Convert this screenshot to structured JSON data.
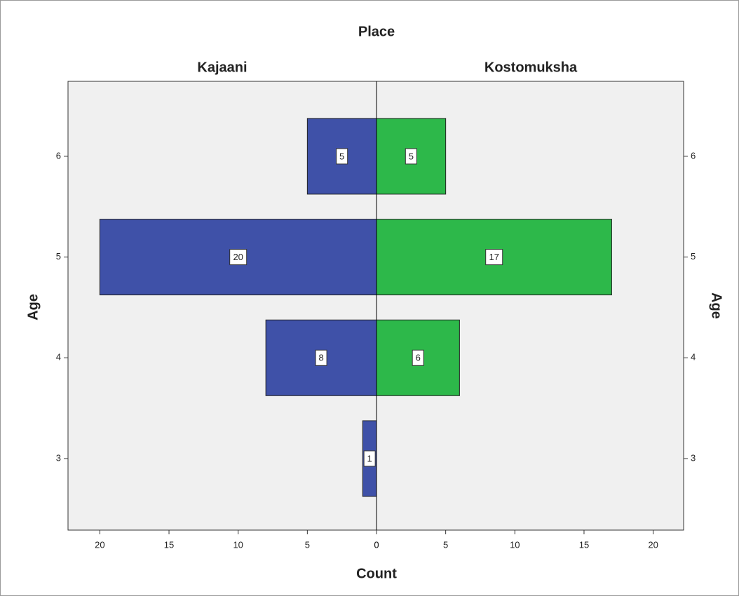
{
  "chart_data": {
    "type": "pyramid",
    "title": "Place",
    "xlabel": "Count",
    "ylabel": "Age",
    "categories": [
      3,
      4,
      5,
      6
    ],
    "series": [
      {
        "name": "Kajaani",
        "color": "#3f51a8",
        "values": [
          1,
          8,
          20,
          5
        ]
      },
      {
        "name": "Kostomuksha",
        "color": "#2db84a",
        "values": [
          null,
          6,
          17,
          5
        ]
      }
    ],
    "xlim": [
      0,
      22.3
    ],
    "xticks": [
      0,
      5,
      10,
      15,
      20
    ]
  }
}
